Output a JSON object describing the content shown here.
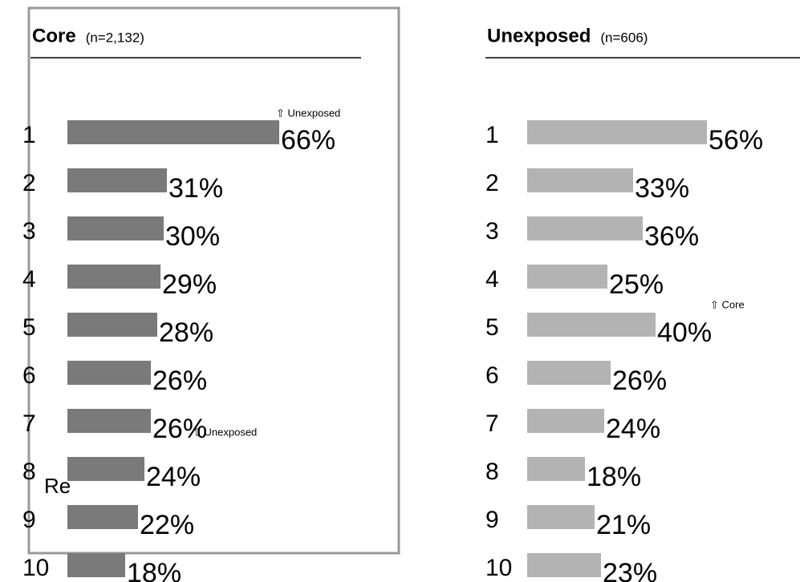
{
  "chart_data": [
    {
      "type": "bar",
      "title": "Core",
      "subtitle": "(n=2,132)",
      "categories": [
        "1",
        "2",
        "3",
        "4",
        "5",
        "6",
        "7",
        "8",
        "9",
        "10"
      ],
      "values": [
        66,
        31,
        30,
        29,
        28,
        26,
        26,
        24,
        22,
        18
      ],
      "value_labels": [
        "66%",
        "31%",
        "30%",
        "29%",
        "28%",
        "26%",
        "26%",
        "24%",
        "22%",
        "18%"
      ],
      "color": "#7a7a7a",
      "annotations": [
        "⇧ Unexposed",
        "⇧ Unexposed",
        "Re"
      ]
    },
    {
      "type": "bar",
      "title": "Unexposed",
      "subtitle": "(n=606)",
      "categories": [
        "1",
        "2",
        "3",
        "4",
        "5",
        "6",
        "7",
        "8",
        "9",
        "10"
      ],
      "values": [
        56,
        33,
        36,
        25,
        40,
        26,
        24,
        18,
        21,
        23
      ],
      "value_labels": [
        "56%",
        "33%",
        "36%",
        "25%",
        "40%",
        "26%",
        "24%",
        "18%",
        "21%",
        "23%"
      ],
      "color": "#b3b3b3",
      "annotations": [
        "⇧ Core"
      ]
    }
  ]
}
